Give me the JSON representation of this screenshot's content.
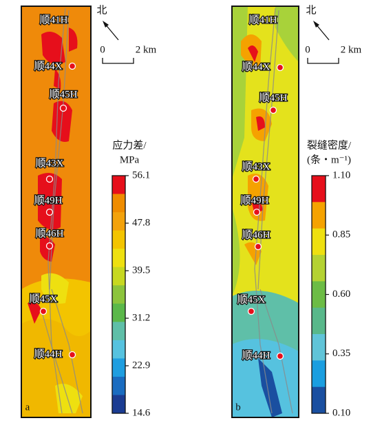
{
  "panels": [
    {
      "letter": "a",
      "north": "北",
      "scale": {
        "start": "0",
        "end": "2 km"
      },
      "wells": [
        "顺41H",
        "顺44X",
        "顺45H",
        "顺43X",
        "顺49H",
        "顺46H",
        "顺45X",
        "顺44H"
      ],
      "colorbar": {
        "title": [
          "应力差/",
          "MPa"
        ],
        "ticks": [
          "56.1",
          "47.8",
          "39.5",
          "31.2",
          "22.9",
          "14.6"
        ],
        "colors": [
          "#e60f1b",
          "#ef8c00",
          "#f3a20c",
          "#f3c400",
          "#eee010",
          "#c7d821",
          "#8cc43c",
          "#5bb84a",
          "#5fbfa8",
          "#56c2df",
          "#1f9ee0",
          "#1a6cc0",
          "#1b3c92"
        ]
      }
    },
    {
      "letter": "b",
      "north": "北",
      "scale": {
        "start": "0",
        "end": "2 km"
      },
      "wells": [
        "顺41H",
        "顺44X",
        "顺45H",
        "顺43X",
        "顺49H",
        "顺46H",
        "顺45X",
        "顺44H"
      ],
      "colorbar": {
        "title": [
          "裂缝密度/",
          "(条・m⁻¹)"
        ],
        "ticks": [
          "1.10",
          "0.85",
          "0.60",
          "0.35",
          "0.10"
        ],
        "colors": [
          "#e60f1b",
          "#f5a200",
          "#eee010",
          "#b4d232",
          "#6cbc45",
          "#58b88a",
          "#60c4d8",
          "#1a9ee0",
          "#1a4fa0"
        ]
      }
    }
  ]
}
